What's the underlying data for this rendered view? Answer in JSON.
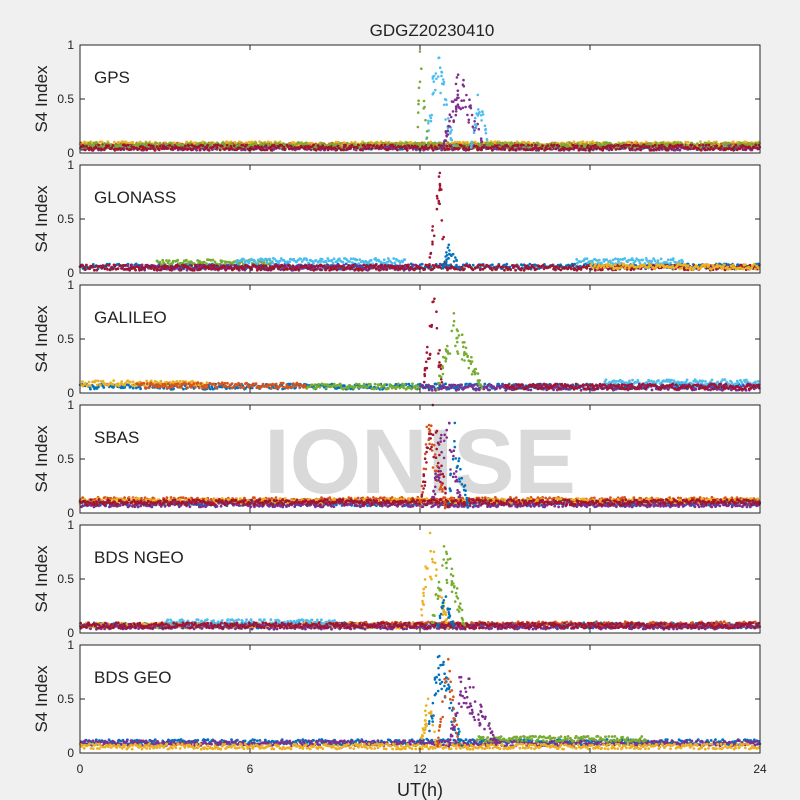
{
  "chart_data": {
    "type": "scatter",
    "title": "GDGZ20230410",
    "xlabel": "UT(h)",
    "ylabel": "S4 Index",
    "xlim": [
      0,
      24
    ],
    "ylim": [
      0,
      1
    ],
    "xticks": [
      "0",
      "6",
      "12",
      "18",
      "24"
    ],
    "yticks": [
      "0",
      "0.5",
      "1"
    ],
    "watermark": "IONISE",
    "series_colors": [
      "#0072bd",
      "#d95319",
      "#edb120",
      "#7e2f8e",
      "#77ac30",
      "#4dbeee",
      "#a2142f"
    ],
    "panels": [
      {
        "name": "GPS",
        "background_noise": [
          {
            "color": "#0072bd",
            "x": [
              0,
              24
            ],
            "level": 0.06
          },
          {
            "color": "#d95319",
            "x": [
              0,
              24
            ],
            "level": 0.07
          },
          {
            "color": "#edb120",
            "x": [
              0,
              24
            ],
            "level": 0.08
          },
          {
            "color": "#7e2f8e",
            "x": [
              0,
              24
            ],
            "level": 0.05
          },
          {
            "color": "#77ac30",
            "x": [
              0,
              24
            ],
            "level": 0.07
          },
          {
            "color": "#a2142f",
            "x": [
              0,
              24
            ],
            "level": 0.05
          }
        ],
        "events": [
          {
            "color": "#4dbeee",
            "x": [
              12.2,
              13.2
            ],
            "peak": 1.0,
            "at": 12.6
          },
          {
            "color": "#77ac30",
            "x": [
              11.9,
              12.3
            ],
            "peak": 0.95,
            "at": 12.0
          },
          {
            "color": "#7e2f8e",
            "x": [
              12.8,
              14.3
            ],
            "peak": 0.75,
            "at": 13.4
          },
          {
            "color": "#4dbeee",
            "x": [
              13.8,
              14.4
            ],
            "peak": 0.65,
            "at": 14.1
          }
        ]
      },
      {
        "name": "GLONASS",
        "background_noise": [
          {
            "color": "#0072bd",
            "x": [
              0,
              24
            ],
            "level": 0.06
          },
          {
            "color": "#77ac30",
            "x": [
              2.7,
              6.8
            ],
            "level": 0.1
          },
          {
            "color": "#4dbeee",
            "x": [
              5.5,
              11.5
            ],
            "level": 0.11
          },
          {
            "color": "#4dbeee",
            "x": [
              17.5,
              21.3
            ],
            "level": 0.11
          },
          {
            "color": "#7e2f8e",
            "x": [
              1.5,
              12
            ],
            "level": 0.05
          },
          {
            "color": "#a2142f",
            "x": [
              0,
              24
            ],
            "level": 0.05
          },
          {
            "color": "#edb120",
            "x": [
              18,
              24
            ],
            "level": 0.06
          }
        ],
        "events": [
          {
            "color": "#a2142f",
            "x": [
              12.3,
              12.9
            ],
            "peak": 0.95,
            "at": 12.7
          },
          {
            "color": "#0072bd",
            "x": [
              12.8,
              13.4
            ],
            "peak": 0.25,
            "at": 13.0
          }
        ]
      },
      {
        "name": "GALILEO",
        "background_noise": [
          {
            "color": "#0072bd",
            "x": [
              0,
              24
            ],
            "level": 0.06
          },
          {
            "color": "#edb120",
            "x": [
              0,
              4.5
            ],
            "level": 0.09
          },
          {
            "color": "#d95319",
            "x": [
              2,
              8
            ],
            "level": 0.07
          },
          {
            "color": "#77ac30",
            "x": [
              8,
              12
            ],
            "level": 0.06
          },
          {
            "color": "#4dbeee",
            "x": [
              18.5,
              24
            ],
            "level": 0.1
          },
          {
            "color": "#7e2f8e",
            "x": [
              12,
              24
            ],
            "level": 0.05
          },
          {
            "color": "#a2142f",
            "x": [
              15,
              24
            ],
            "level": 0.06
          }
        ],
        "events": [
          {
            "color": "#a2142f",
            "x": [
              12.1,
              12.8
            ],
            "peak": 0.9,
            "at": 12.5
          },
          {
            "color": "#77ac30",
            "x": [
              12.6,
              14.2
            ],
            "peak": 0.75,
            "at": 13.2
          }
        ]
      },
      {
        "name": "SBAS",
        "background_noise": [
          {
            "color": "#0072bd",
            "x": [
              0,
              24
            ],
            "level": 0.09
          },
          {
            "color": "#d95319",
            "x": [
              0,
              24
            ],
            "level": 0.12
          },
          {
            "color": "#edb120",
            "x": [
              0,
              24
            ],
            "level": 0.11
          },
          {
            "color": "#7e2f8e",
            "x": [
              0,
              24
            ],
            "level": 0.08
          },
          {
            "color": "#a2142f",
            "x": [
              0,
              24
            ],
            "level": 0.1
          }
        ],
        "events": [
          {
            "color": "#a2142f",
            "x": [
              12.0,
              13.0
            ],
            "peak": 1.0,
            "at": 12.4
          },
          {
            "color": "#d95319",
            "x": [
              12.0,
              12.9
            ],
            "peak": 0.9,
            "at": 12.3
          },
          {
            "color": "#7e2f8e",
            "x": [
              12.4,
              13.5
            ],
            "peak": 1.0,
            "at": 12.9
          },
          {
            "color": "#0072bd",
            "x": [
              13.0,
              13.7
            ],
            "peak": 0.85,
            "at": 13.2
          }
        ]
      },
      {
        "name": "BDS NGEO",
        "background_noise": [
          {
            "color": "#0072bd",
            "x": [
              0,
              24
            ],
            "level": 0.07
          },
          {
            "color": "#d95319",
            "x": [
              8,
              24
            ],
            "level": 0.08
          },
          {
            "color": "#edb120",
            "x": [
              0,
              12
            ],
            "level": 0.07
          },
          {
            "color": "#4dbeee",
            "x": [
              3,
              9
            ],
            "level": 0.1
          },
          {
            "color": "#7e2f8e",
            "x": [
              0,
              24
            ],
            "level": 0.06
          },
          {
            "color": "#a2142f",
            "x": [
              0,
              24
            ],
            "level": 0.07
          }
        ],
        "events": [
          {
            "color": "#edb120",
            "x": [
              12.0,
              13.0
            ],
            "peak": 0.95,
            "at": 12.3
          },
          {
            "color": "#77ac30",
            "x": [
              12.4,
              13.6
            ],
            "peak": 0.9,
            "at": 12.9
          },
          {
            "color": "#0072bd",
            "x": [
              12.6,
              13.2
            ],
            "peak": 0.35,
            "at": 12.9
          }
        ]
      },
      {
        "name": "BDS GEO",
        "background_noise": [
          {
            "color": "#0072bd",
            "x": [
              0,
              24
            ],
            "level": 0.1
          },
          {
            "color": "#7e2f8e",
            "x": [
              0,
              24
            ],
            "level": 0.09
          },
          {
            "color": "#edb120",
            "x": [
              0,
              24
            ],
            "level": 0.06
          },
          {
            "color": "#77ac30",
            "x": [
              14,
              20
            ],
            "level": 0.13
          }
        ],
        "events": [
          {
            "color": "#0072bd",
            "x": [
              12.2,
              13.5
            ],
            "peak": 0.95,
            "at": 12.7
          },
          {
            "color": "#d95319",
            "x": [
              12.6,
              13.4
            ],
            "peak": 0.9,
            "at": 13.0
          },
          {
            "color": "#edb120",
            "x": [
              12.0,
              12.6
            ],
            "peak": 0.55,
            "at": 12.3
          },
          {
            "color": "#7e2f8e",
            "x": [
              13.0,
              14.8
            ],
            "peak": 0.8,
            "at": 13.5
          }
        ]
      }
    ]
  }
}
